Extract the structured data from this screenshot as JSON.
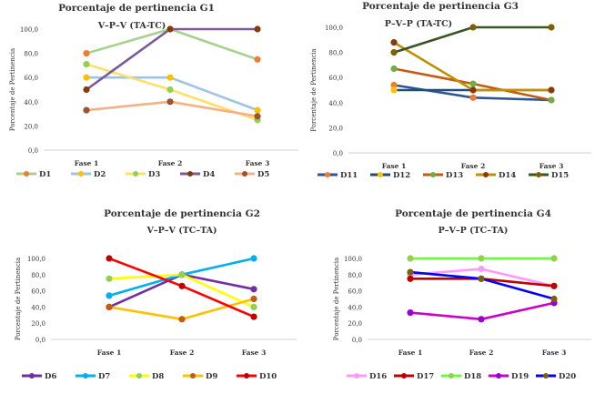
{
  "chart_data": [
    {
      "type": "line",
      "title": "Porcentaje de pertinencia G1",
      "subtitle": "V–P–V   (TA-TC)",
      "ylabel": "Porcentaje de Pertinencia",
      "xlabel": "",
      "categories": [
        "Fase 1",
        "Fase 2",
        "Fase 3"
      ],
      "ylim": [
        0,
        100
      ],
      "yticks": [
        "0,0",
        "20,0",
        "40,0",
        "60,0",
        "80,0",
        "100,0"
      ],
      "grid": false,
      "legend": "bottom",
      "series": [
        {
          "name": "D1",
          "color": "#a9d18e",
          "values": [
            80,
            100,
            75
          ]
        },
        {
          "name": "D2",
          "color": "#9dc3e6",
          "values": [
            60,
            60,
            33
          ]
        },
        {
          "name": "D3",
          "color": "#ffe066",
          "values": [
            71,
            50,
            25
          ]
        },
        {
          "name": "D4",
          "color": "#7a5a9a",
          "values": [
            50,
            100,
            100
          ]
        },
        {
          "name": "D5",
          "color": "#f4b183",
          "values": [
            33,
            40,
            28
          ]
        }
      ],
      "marker_colors": [
        "#ed7d31",
        "#ffc000",
        "#92d050",
        "#843c0c",
        "#a0522d"
      ]
    },
    {
      "type": "line",
      "title": "Porcentaje de pertinencia G3",
      "subtitle": "P–V–P   (TA-TC)",
      "ylabel": "Porcentaje de Pertinencia",
      "xlabel": "",
      "categories": [
        "Fase 1",
        "Fase 2",
        "Fase 3"
      ],
      "ylim": [
        0,
        100
      ],
      "yticks": [
        "0,0",
        "20,0",
        "40,0",
        "60,0",
        "80,0",
        "100,0"
      ],
      "grid": false,
      "legend": "bottom",
      "series": [
        {
          "name": "D11",
          "color": "#2f5597",
          "values": [
            54,
            44,
            42
          ]
        },
        {
          "name": "D12",
          "color": "#1f4e79",
          "values": [
            50,
            50,
            50
          ]
        },
        {
          "name": "D13",
          "color": "#c55a11",
          "values": [
            67,
            55,
            42
          ]
        },
        {
          "name": "D14",
          "color": "#bf9000",
          "values": [
            88,
            50,
            50
          ]
        },
        {
          "name": "D15",
          "color": "#375623",
          "values": [
            80,
            100,
            100
          ]
        }
      ],
      "marker_colors": [
        "#ed7d31",
        "#ffc000",
        "#70ad47",
        "#843c0c",
        "#7f6000"
      ]
    },
    {
      "type": "line",
      "title": "Porcentaje de pertinencia G2",
      "subtitle": "V–P–V   (TC–TA)",
      "ylabel": "Porcentaje de Pertinencia",
      "xlabel": "",
      "categories": [
        "Fase 1",
        "Fase 2",
        "Fase 3"
      ],
      "ylim": [
        0,
        100
      ],
      "yticks": [
        "0,0",
        "20,0",
        "40,0",
        "60,0",
        "80,0",
        "100,0"
      ],
      "grid": false,
      "legend": "bottom",
      "series": [
        {
          "name": "D6",
          "color": "#7030a0",
          "values": [
            40,
            80,
            62
          ]
        },
        {
          "name": "D7",
          "color": "#00b0f0",
          "values": [
            54,
            80,
            100
          ]
        },
        {
          "name": "D8",
          "color": "#ffff00",
          "values": [
            75,
            80,
            40
          ]
        },
        {
          "name": "D9",
          "color": "#ffc000",
          "values": [
            40,
            25,
            50
          ]
        },
        {
          "name": "D10",
          "color": "#ff0000",
          "values": [
            100,
            66,
            28
          ]
        }
      ],
      "marker_colors": [
        "#7030a0",
        "#00b0f0",
        "#92d050",
        "#c55a11",
        "#c00000"
      ]
    },
    {
      "type": "line",
      "title": "Porcentaje de pertinencia G4",
      "subtitle": "P–V–P   (TC–TA)",
      "ylabel": "Porcentaje de Pertinencia",
      "xlabel": "",
      "categories": [
        "Fase 1",
        "Fase 2",
        "Fase 3"
      ],
      "ylim": [
        0,
        100
      ],
      "yticks": [
        "0,0",
        "20,0",
        "40,0",
        "60,0",
        "80,0",
        "100,0"
      ],
      "grid": false,
      "legend": "bottom",
      "series": [
        {
          "name": "D16",
          "color": "#ff99ff",
          "values": [
            80,
            87,
            66
          ]
        },
        {
          "name": "D17",
          "color": "#c00000",
          "values": [
            75,
            75,
            66
          ]
        },
        {
          "name": "D18",
          "color": "#66ff33",
          "values": [
            100,
            100,
            100
          ]
        },
        {
          "name": "D19",
          "color": "#cc00cc",
          "values": [
            33,
            25,
            45
          ]
        },
        {
          "name": "D20",
          "color": "#0000ff",
          "values": [
            83,
            75,
            50
          ]
        }
      ],
      "marker_colors": [
        "#ff99ff",
        "#c00000",
        "#92d050",
        "#9900cc",
        "#7f6000"
      ]
    }
  ]
}
